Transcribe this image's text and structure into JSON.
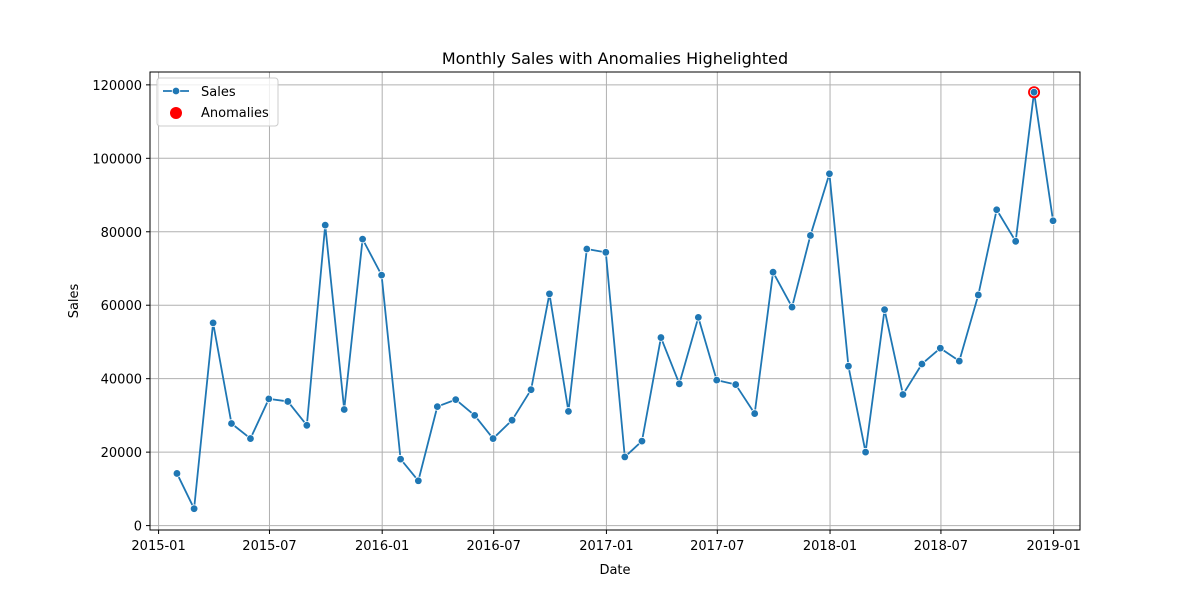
{
  "chart_data": {
    "type": "line",
    "title": "Monthly Sales with Anomalies Highelighted",
    "xlabel": "Date",
    "ylabel": "Sales",
    "x_ticks": [
      "2015-01",
      "2015-07",
      "2016-01",
      "2016-07",
      "2017-01",
      "2017-07",
      "2018-01",
      "2018-07",
      "2019-01"
    ],
    "y_ticks": [
      "0",
      "20000",
      "40000",
      "60000",
      "80000",
      "100000",
      "120000"
    ],
    "xlim": [
      "2014-12-18",
      "2019-02-13"
    ],
    "ylim": [
      -1200,
      123500
    ],
    "grid": true,
    "legend_position": "top-left",
    "colors": {
      "sales": "#1f77b4",
      "anomaly": "#ff0000"
    },
    "series": [
      {
        "name": "Sales",
        "x": [
          "2015-01-31",
          "2015-02-28",
          "2015-03-31",
          "2015-04-30",
          "2015-05-31",
          "2015-06-30",
          "2015-07-31",
          "2015-08-31",
          "2015-09-30",
          "2015-10-31",
          "2015-11-30",
          "2015-12-31",
          "2016-01-31",
          "2016-02-29",
          "2016-03-31",
          "2016-04-30",
          "2016-05-31",
          "2016-06-30",
          "2016-07-31",
          "2016-08-31",
          "2016-09-30",
          "2016-10-31",
          "2016-11-30",
          "2016-12-31",
          "2017-01-31",
          "2017-02-28",
          "2017-03-31",
          "2017-04-30",
          "2017-05-31",
          "2017-06-30",
          "2017-07-31",
          "2017-08-31",
          "2017-09-30",
          "2017-10-31",
          "2017-11-30",
          "2017-12-31",
          "2018-01-31",
          "2018-02-28",
          "2018-03-31",
          "2018-04-30",
          "2018-05-31",
          "2018-06-30",
          "2018-07-31",
          "2018-08-31",
          "2018-09-30",
          "2018-10-31",
          "2018-11-30",
          "2018-12-31"
        ],
        "y": [
          14200,
          4600,
          55200,
          27800,
          23700,
          34500,
          33800,
          27300,
          81800,
          31600,
          78000,
          68200,
          18100,
          12200,
          32400,
          34300,
          30000,
          23700,
          28700,
          37000,
          63100,
          31100,
          75300,
          74400,
          18700,
          23000,
          51200,
          38600,
          56700,
          39600,
          38400,
          30500,
          69000,
          59500,
          79000,
          95800,
          43400,
          20000,
          58800,
          35700,
          44000,
          48300,
          44800,
          62800,
          86000,
          77400,
          118000,
          83000
        ]
      },
      {
        "name": "Anomalies",
        "x": [
          "2018-11-30"
        ],
        "y": [
          118000
        ]
      }
    ]
  }
}
